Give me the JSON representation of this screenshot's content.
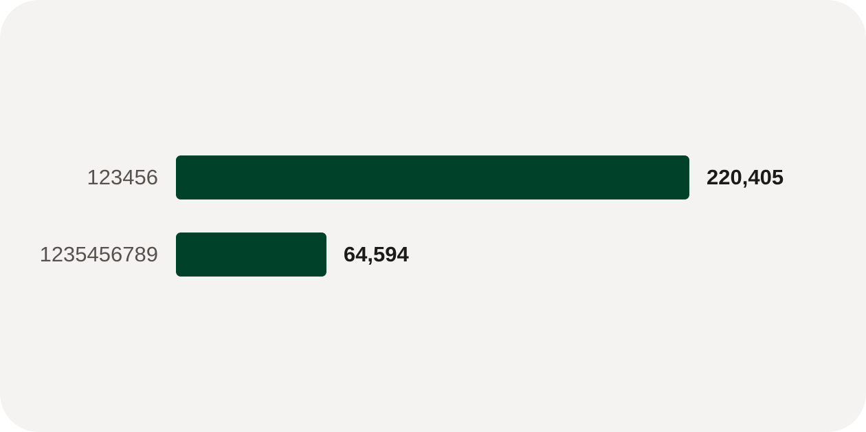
{
  "chart_data": {
    "type": "bar",
    "orientation": "horizontal",
    "categories": [
      "123456",
      "1235456789"
    ],
    "values": [
      220405,
      64594
    ],
    "value_labels": [
      "220,405",
      "64,594"
    ],
    "bar_color": "#00412a",
    "grid": false
  }
}
